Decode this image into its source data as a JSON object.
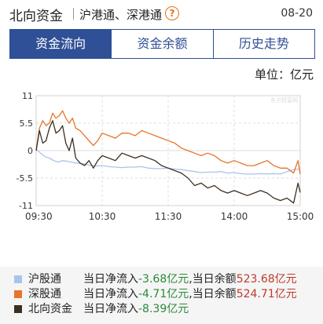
{
  "header": {
    "title": "北向资金",
    "subtitle": "沪港通、深港通",
    "date": "08-20"
  },
  "tabs": [
    {
      "label": "资金流向",
      "active": true
    },
    {
      "label": "资金余额",
      "active": false
    },
    {
      "label": "历史走势",
      "active": false
    }
  ],
  "unit_label": "单位：亿元",
  "watermark": "东方财富网",
  "colors": {
    "accent": "#2f4f96",
    "shanghai": "#a9c4ea",
    "shenzhen": "#e8742a",
    "north": "#3d2f21"
  },
  "chart_data": {
    "type": "line",
    "x_ticks": [
      "09:30",
      "10:30",
      "11:30",
      "14:00",
      "15:00"
    ],
    "y_ticks": [
      11,
      5.5,
      0,
      -5.5,
      -11
    ],
    "ylim": [
      -11,
      11
    ],
    "grid": true,
    "series": [
      {
        "name": "沪股通",
        "color": "#a9c4ea",
        "x": [
          0,
          4,
          8,
          12,
          16,
          20,
          24,
          30,
          36,
          42,
          48,
          54,
          60,
          66,
          72,
          78,
          84,
          90,
          96,
          102,
          108,
          114,
          120,
          126,
          132,
          138,
          144,
          150,
          156,
          162,
          168,
          174,
          180,
          186,
          192,
          198,
          204,
          210,
          216,
          222,
          228,
          234,
          240
        ],
        "y": [
          0.3,
          -0.5,
          -1.2,
          -1.5,
          -2.0,
          -2.3,
          -2.0,
          -2.2,
          -2.5,
          -2.6,
          -2.9,
          -3.1,
          -3.0,
          -3.2,
          -3.3,
          -3.4,
          -3.3,
          -3.3,
          -3.2,
          -3.5,
          -3.6,
          -3.6,
          -3.5,
          -3.7,
          -3.8,
          -4.0,
          -4.2,
          -4.4,
          -4.3,
          -4.3,
          -4.2,
          -4.5,
          -4.4,
          -4.6,
          -4.7,
          -4.7,
          -4.6,
          -4.7,
          -4.6,
          -4.7,
          -4.2,
          -3.8,
          -3.68
        ]
      },
      {
        "name": "深股通",
        "color": "#e8742a",
        "x": [
          0,
          3,
          6,
          9,
          12,
          15,
          18,
          21,
          24,
          27,
          30,
          33,
          36,
          40,
          44,
          48,
          52,
          56,
          60,
          66,
          72,
          78,
          84,
          90,
          96,
          102,
          108,
          114,
          120,
          126,
          132,
          138,
          144,
          150,
          156,
          162,
          168,
          174,
          180,
          186,
          192,
          198,
          204,
          210,
          216,
          222,
          228,
          234,
          238,
          240
        ],
        "y": [
          0,
          4.5,
          6.0,
          5.0,
          5.5,
          7.5,
          6.5,
          7.0,
          8.0,
          6.5,
          5.5,
          6.5,
          4.5,
          4.0,
          3.0,
          2.0,
          1.0,
          2.0,
          3.5,
          3.0,
          2.5,
          3.5,
          3.5,
          3.0,
          4.0,
          3.5,
          3.0,
          2.5,
          2.0,
          1.5,
          0.5,
          0.0,
          -0.5,
          -1.0,
          -0.5,
          -1.0,
          -2.0,
          -2.5,
          -2.0,
          -2.5,
          -3.0,
          -3.0,
          -2.5,
          -2.0,
          -3.0,
          -3.5,
          -3.5,
          -4.5,
          -2.0,
          -4.71
        ]
      },
      {
        "name": "北向资金",
        "color": "#3d2f21",
        "x": [
          0,
          3,
          6,
          9,
          12,
          15,
          18,
          21,
          24,
          27,
          30,
          33,
          36,
          40,
          44,
          48,
          52,
          56,
          60,
          66,
          72,
          78,
          84,
          90,
          96,
          102,
          108,
          114,
          120,
          126,
          132,
          138,
          144,
          150,
          156,
          162,
          168,
          174,
          180,
          186,
          192,
          198,
          204,
          210,
          216,
          222,
          228,
          234,
          238,
          240
        ],
        "y": [
          0,
          4.0,
          1.5,
          2.0,
          4.5,
          6.0,
          3.5,
          4.0,
          5.0,
          1.5,
          0.0,
          2.5,
          -1.5,
          -2.5,
          -3.0,
          -2.0,
          -3.5,
          -2.0,
          -1.0,
          -1.5,
          -2.0,
          -0.5,
          -1.0,
          -1.5,
          -1.0,
          -1.5,
          -2.0,
          -3.0,
          -3.5,
          -4.0,
          -4.5,
          -5.5,
          -7.0,
          -6.5,
          -7.5,
          -7.0,
          -8.0,
          -8.5,
          -8.0,
          -8.5,
          -9.0,
          -8.5,
          -8.0,
          -8.5,
          -9.5,
          -10.0,
          -9.5,
          -10.5,
          -6.5,
          -8.39
        ]
      }
    ]
  },
  "legend": [
    {
      "name": "沪股通",
      "prefix": "当日净流入",
      "inflow": "-3.68亿元",
      "mid": ",当日余额",
      "balance": "523.68亿元",
      "color": "#a9c4ea"
    },
    {
      "name": "深股通",
      "prefix": "当日净流入",
      "inflow": "-4.71亿元",
      "mid": ",当日余额",
      "balance": "524.71亿元",
      "color": "#e8742a"
    },
    {
      "name": "北向资金",
      "prefix": "当日净流入",
      "inflow": "-8.39亿元",
      "mid": "",
      "balance": "",
      "color": "#3d2f21"
    }
  ]
}
